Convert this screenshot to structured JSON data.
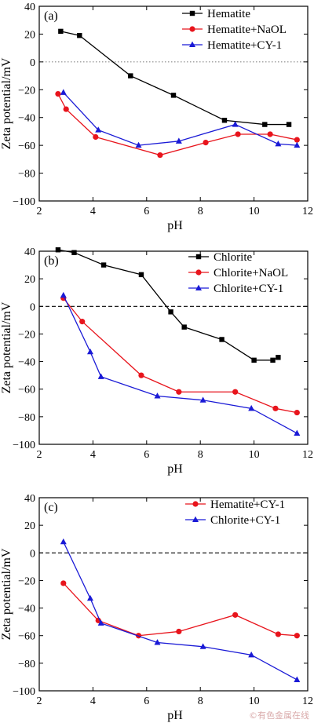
{
  "watermark": "©有色金属在线",
  "chart_data": [
    {
      "type": "line",
      "panel_label": "(a)",
      "xlabel": "pH",
      "ylabel": "Zeta potential/mV",
      "xlim": [
        2,
        12
      ],
      "ylim": [
        -100,
        40
      ],
      "xticks": [
        2,
        4,
        6,
        8,
        10,
        12
      ],
      "yticks": [
        -100,
        -80,
        -60,
        -40,
        -20,
        0,
        20,
        40
      ],
      "reference_line": {
        "y": 0,
        "style": "dotted",
        "color": "#888888"
      },
      "legend_position": "top-right",
      "series": [
        {
          "name": "Hematite",
          "color": "#000000",
          "marker": "square",
          "x": [
            2.8,
            3.5,
            5.4,
            7.0,
            8.9,
            10.4,
            11.3
          ],
          "y": [
            22,
            19,
            -10,
            -24,
            -42,
            -45,
            -45
          ]
        },
        {
          "name": "Hematite+NaOL",
          "color": "#e8141c",
          "marker": "circle",
          "x": [
            2.7,
            3.0,
            4.1,
            6.5,
            8.2,
            9.4,
            10.6,
            11.6
          ],
          "y": [
            -23,
            -34,
            -54,
            -67,
            -58,
            -52,
            -52,
            -56
          ]
        },
        {
          "name": "Hematite+CY-1",
          "color": "#1a1ad6",
          "marker": "triangle",
          "x": [
            2.9,
            4.2,
            5.7,
            7.2,
            9.3,
            10.9,
            11.6
          ],
          "y": [
            -22,
            -49,
            -60,
            -57,
            -45,
            -59,
            -60
          ]
        }
      ]
    },
    {
      "type": "line",
      "panel_label": "(b)",
      "xlabel": "pH",
      "ylabel": "Zeta potential/mV",
      "xlim": [
        2,
        12
      ],
      "ylim": [
        -100,
        40
      ],
      "xticks": [
        2,
        4,
        6,
        8,
        10,
        12
      ],
      "yticks": [
        -100,
        -80,
        -60,
        -40,
        -20,
        0,
        20,
        40
      ],
      "reference_line": {
        "y": 0,
        "style": "dashed",
        "color": "#000000"
      },
      "legend_position": "top-right",
      "series": [
        {
          "name": "Chlorite",
          "color": "#000000",
          "marker": "square",
          "x": [
            2.7,
            3.3,
            4.4,
            5.8,
            6.9,
            7.4,
            8.8,
            10.0,
            10.7,
            10.9
          ],
          "y": [
            41,
            39,
            30,
            23,
            -4,
            -15,
            -24,
            -39,
            -39,
            -37
          ]
        },
        {
          "name": "Chlorite+NaOL",
          "color": "#e8141c",
          "marker": "circle",
          "x": [
            2.9,
            3.6,
            5.8,
            7.2,
            9.3,
            10.8,
            11.6
          ],
          "y": [
            6,
            -11,
            -50,
            -62,
            -62,
            -74,
            -77
          ]
        },
        {
          "name": "Chlorite+CY-1",
          "color": "#1a1ad6",
          "marker": "triangle",
          "x": [
            2.9,
            3.9,
            4.3,
            6.4,
            8.1,
            9.9,
            11.6
          ],
          "y": [
            8,
            -33,
            -51,
            -65,
            -68,
            -74,
            -92
          ]
        }
      ]
    },
    {
      "type": "line",
      "panel_label": "(c)",
      "xlabel": "pH",
      "ylabel": "Zeta potential/mV",
      "xlim": [
        2,
        12
      ],
      "ylim": [
        -100,
        40
      ],
      "xticks": [
        2,
        4,
        6,
        8,
        10,
        12
      ],
      "yticks": [
        -100,
        -80,
        -60,
        -40,
        -20,
        0,
        20,
        40
      ],
      "reference_line": {
        "y": 0,
        "style": "dashed",
        "color": "#000000"
      },
      "legend_position": "top-right",
      "series": [
        {
          "name": "Hematite+CY-1",
          "color": "#e8141c",
          "marker": "circle",
          "x": [
            2.9,
            4.2,
            5.7,
            7.2,
            9.3,
            10.9,
            11.6
          ],
          "y": [
            -22,
            -49,
            -60,
            -57,
            -45,
            -59,
            -60
          ]
        },
        {
          "name": "Chlorite+CY-1",
          "color": "#1a1ad6",
          "marker": "triangle",
          "x": [
            2.9,
            3.9,
            4.3,
            6.4,
            8.1,
            9.9,
            11.6
          ],
          "y": [
            8,
            -33,
            -51,
            -65,
            -68,
            -74,
            -92
          ]
        }
      ]
    }
  ]
}
